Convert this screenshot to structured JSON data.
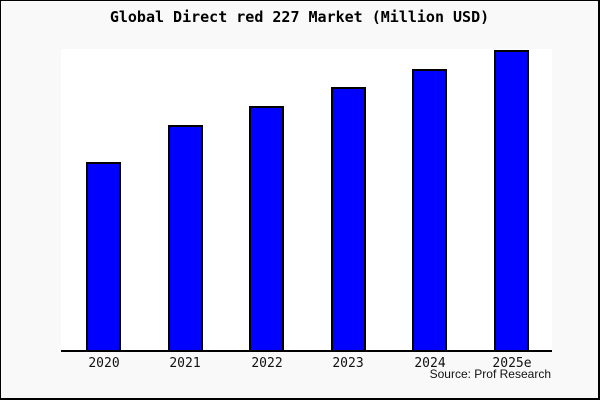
{
  "chart_data": {
    "type": "bar",
    "title": "Global Direct red 227 Market (Million USD)",
    "categories": [
      "2020",
      "2021",
      "2022",
      "2023",
      "2024",
      "2025e"
    ],
    "values_relative_pct_of_max": [
      62.7,
      75.0,
      81.3,
      87.7,
      93.7,
      100
    ],
    "xlabel": "",
    "ylabel": "",
    "y_axis_visible": false,
    "grid": false,
    "legend": false,
    "bar_color": "#0000ff",
    "bar_border_color": "#000000",
    "background_color": "#f9f9f9",
    "plot_background_color": "#ffffff",
    "source_note": "Source: Prof Research"
  }
}
